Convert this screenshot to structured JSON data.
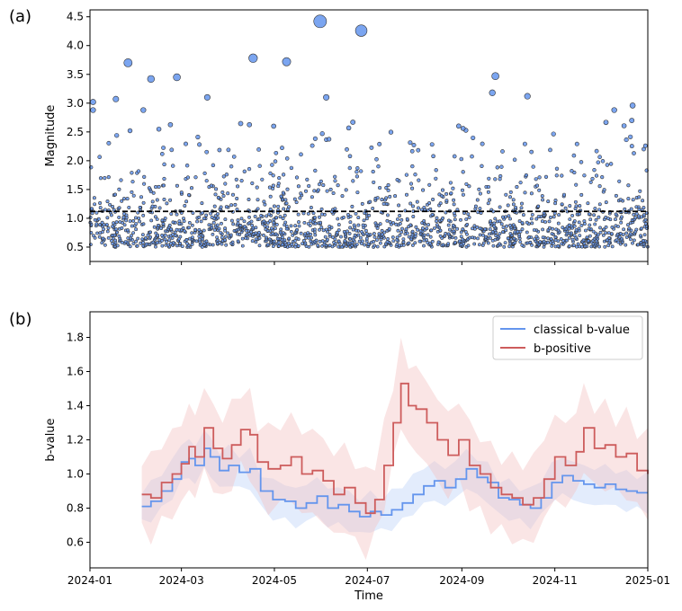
{
  "chart_data": [
    {
      "panel": "(a)",
      "type": "scatter",
      "title": "",
      "xlabel": "",
      "ylabel": "Magnitude",
      "xlim": [
        "2024-01-01",
        "2025-01-01"
      ],
      "ylim": [
        0.25,
        4.62
      ],
      "yticks": [
        "0.5",
        "1.0",
        "1.5",
        "2.0",
        "2.5",
        "3.0",
        "3.5",
        "4.0",
        "4.5"
      ],
      "marker_color": "#6495ED",
      "marker_edge_color": "#333333",
      "reference_line": {
        "y": 1.12,
        "style": "dashed",
        "color": "#000000"
      },
      "n_points": 1800,
      "magnitude_range": [
        0.5,
        4.42
      ],
      "large_events": [
        {
          "date": "2024-01-03",
          "magnitude": 3.02
        },
        {
          "date": "2024-01-03",
          "magnitude": 2.88
        },
        {
          "date": "2024-01-18",
          "magnitude": 3.07
        },
        {
          "date": "2024-01-26",
          "magnitude": 3.7
        },
        {
          "date": "2024-02-05",
          "magnitude": 2.88
        },
        {
          "date": "2024-02-10",
          "magnitude": 3.42
        },
        {
          "date": "2024-02-27",
          "magnitude": 3.45
        },
        {
          "date": "2024-03-18",
          "magnitude": 3.1
        },
        {
          "date": "2024-04-17",
          "magnitude": 3.78
        },
        {
          "date": "2024-05-09",
          "magnitude": 3.72
        },
        {
          "date": "2024-05-31",
          "magnitude": 4.42
        },
        {
          "date": "2024-06-04",
          "magnitude": 3.1
        },
        {
          "date": "2024-06-27",
          "magnitude": 4.26
        },
        {
          "date": "2024-09-23",
          "magnitude": 3.47
        },
        {
          "date": "2024-09-21",
          "magnitude": 3.18
        },
        {
          "date": "2024-10-14",
          "magnitude": 3.12
        },
        {
          "date": "2024-12-22",
          "magnitude": 2.96
        },
        {
          "date": "2024-12-10",
          "magnitude": 2.88
        }
      ]
    },
    {
      "panel": "(b)",
      "type": "line",
      "title": "",
      "xlabel": "Time",
      "ylabel": "b-value",
      "xlim": [
        "2024-01-01",
        "2025-01-01"
      ],
      "ylim": [
        0.45,
        1.95
      ],
      "yticks": [
        "0.6",
        "0.8",
        "1.0",
        "1.2",
        "1.4",
        "1.6",
        "1.8"
      ],
      "xticks": [
        "2024-01",
        "2024-03",
        "2024-05",
        "2024-07",
        "2024-09",
        "2024-11",
        "2025-01"
      ],
      "legend_position": "top-right",
      "series": [
        {
          "name": "classical b-value",
          "color": "#6495ED",
          "band_color": "#6495ED",
          "points": [
            [
              "2024-02-04",
              0.81
            ],
            [
              "2024-02-10",
              0.84
            ],
            [
              "2024-02-17",
              0.9
            ],
            [
              "2024-02-24",
              0.97
            ],
            [
              "2024-03-01",
              1.07
            ],
            [
              "2024-03-06",
              1.09
            ],
            [
              "2024-03-10",
              1.05
            ],
            [
              "2024-03-16",
              1.15
            ],
            [
              "2024-03-20",
              1.1
            ],
            [
              "2024-03-26",
              1.02
            ],
            [
              "2024-04-01",
              1.05
            ],
            [
              "2024-04-08",
              1.01
            ],
            [
              "2024-04-15",
              1.03
            ],
            [
              "2024-04-22",
              0.9
            ],
            [
              "2024-04-30",
              0.85
            ],
            [
              "2024-05-08",
              0.84
            ],
            [
              "2024-05-15",
              0.8
            ],
            [
              "2024-05-22",
              0.83
            ],
            [
              "2024-05-29",
              0.87
            ],
            [
              "2024-06-05",
              0.8
            ],
            [
              "2024-06-12",
              0.82
            ],
            [
              "2024-06-19",
              0.78
            ],
            [
              "2024-06-26",
              0.75
            ],
            [
              "2024-07-03",
              0.78
            ],
            [
              "2024-07-10",
              0.76
            ],
            [
              "2024-07-17",
              0.79
            ],
            [
              "2024-07-24",
              0.83
            ],
            [
              "2024-07-31",
              0.88
            ],
            [
              "2024-08-07",
              0.93
            ],
            [
              "2024-08-14",
              0.96
            ],
            [
              "2024-08-21",
              0.92
            ],
            [
              "2024-08-28",
              0.97
            ],
            [
              "2024-09-04",
              1.03
            ],
            [
              "2024-09-11",
              0.98
            ],
            [
              "2024-09-18",
              0.95
            ],
            [
              "2024-09-25",
              0.86
            ],
            [
              "2024-10-02",
              0.85
            ],
            [
              "2024-10-09",
              0.82
            ],
            [
              "2024-10-16",
              0.8
            ],
            [
              "2024-10-23",
              0.86
            ],
            [
              "2024-10-30",
              0.95
            ],
            [
              "2024-11-06",
              0.99
            ],
            [
              "2024-11-13",
              0.96
            ],
            [
              "2024-11-20",
              0.94
            ],
            [
              "2024-11-27",
              0.92
            ],
            [
              "2024-12-04",
              0.94
            ],
            [
              "2024-12-11",
              0.91
            ],
            [
              "2024-12-18",
              0.9
            ],
            [
              "2024-12-25",
              0.89
            ],
            [
              "2025-01-01",
              0.89
            ]
          ]
        },
        {
          "name": "b-positive",
          "color": "#CD5C5C",
          "band_color": "#F4C2C2",
          "points": [
            [
              "2024-02-04",
              0.88
            ],
            [
              "2024-02-10",
              0.86
            ],
            [
              "2024-02-17",
              0.95
            ],
            [
              "2024-02-24",
              1.0
            ],
            [
              "2024-03-01",
              1.06
            ],
            [
              "2024-03-06",
              1.16
            ],
            [
              "2024-03-10",
              1.1
            ],
            [
              "2024-03-16",
              1.27
            ],
            [
              "2024-03-22",
              1.15
            ],
            [
              "2024-03-28",
              1.09
            ],
            [
              "2024-04-03",
              1.17
            ],
            [
              "2024-04-09",
              1.26
            ],
            [
              "2024-04-15",
              1.23
            ],
            [
              "2024-04-20",
              1.07
            ],
            [
              "2024-04-27",
              1.03
            ],
            [
              "2024-05-05",
              1.05
            ],
            [
              "2024-05-12",
              1.1
            ],
            [
              "2024-05-19",
              1.0
            ],
            [
              "2024-05-26",
              1.02
            ],
            [
              "2024-06-02",
              0.96
            ],
            [
              "2024-06-09",
              0.88
            ],
            [
              "2024-06-16",
              0.92
            ],
            [
              "2024-06-23",
              0.83
            ],
            [
              "2024-06-30",
              0.77
            ],
            [
              "2024-07-06",
              0.85
            ],
            [
              "2024-07-12",
              1.05
            ],
            [
              "2024-07-18",
              1.3
            ],
            [
              "2024-07-23",
              1.53
            ],
            [
              "2024-07-28",
              1.4
            ],
            [
              "2024-08-02",
              1.38
            ],
            [
              "2024-08-09",
              1.3
            ],
            [
              "2024-08-16",
              1.2
            ],
            [
              "2024-08-23",
              1.11
            ],
            [
              "2024-08-30",
              1.2
            ],
            [
              "2024-09-06",
              1.05
            ],
            [
              "2024-09-13",
              1.0
            ],
            [
              "2024-09-20",
              0.92
            ],
            [
              "2024-09-27",
              0.88
            ],
            [
              "2024-10-04",
              0.86
            ],
            [
              "2024-10-11",
              0.82
            ],
            [
              "2024-10-18",
              0.86
            ],
            [
              "2024-10-25",
              0.97
            ],
            [
              "2024-11-01",
              1.1
            ],
            [
              "2024-11-08",
              1.05
            ],
            [
              "2024-11-15",
              1.13
            ],
            [
              "2024-11-20",
              1.27
            ],
            [
              "2024-11-27",
              1.15
            ],
            [
              "2024-12-04",
              1.17
            ],
            [
              "2024-12-11",
              1.1
            ],
            [
              "2024-12-18",
              1.12
            ],
            [
              "2024-12-25",
              1.02
            ],
            [
              "2025-01-01",
              1.0
            ]
          ]
        }
      ]
    }
  ]
}
